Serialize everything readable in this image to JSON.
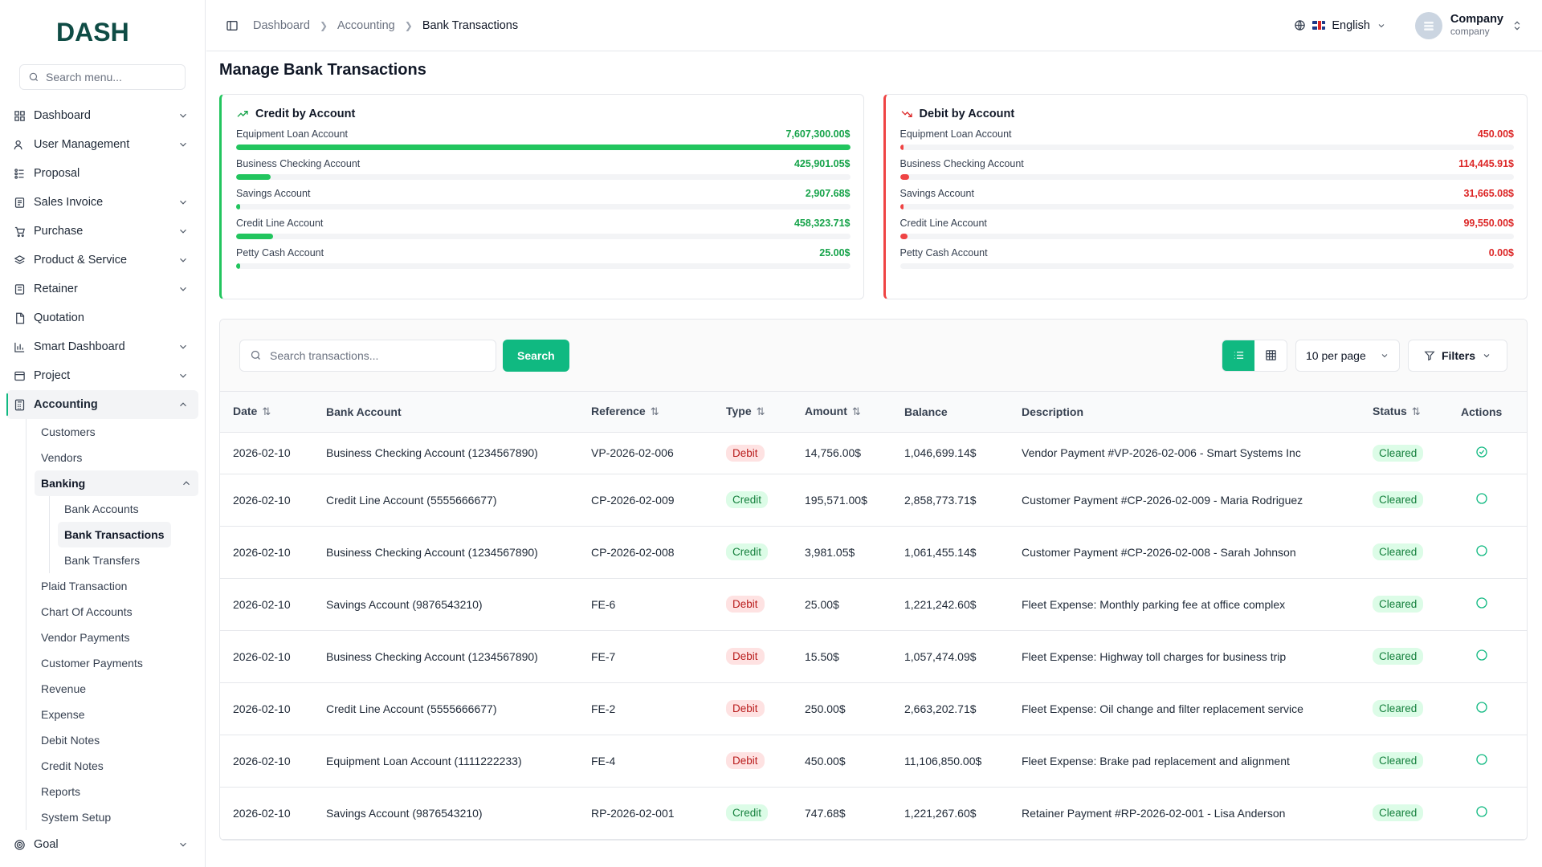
{
  "app": {
    "brand": "DASH"
  },
  "sidebar": {
    "search_placeholder": "Search menu...",
    "items": [
      {
        "label": "Dashboard"
      },
      {
        "label": "User Management"
      },
      {
        "label": "Proposal"
      },
      {
        "label": "Sales Invoice"
      },
      {
        "label": "Purchase"
      },
      {
        "label": "Product & Service"
      },
      {
        "label": "Retainer"
      },
      {
        "label": "Quotation"
      },
      {
        "label": "Smart Dashboard"
      },
      {
        "label": "Project"
      },
      {
        "label": "Accounting"
      },
      {
        "label": "Goal"
      }
    ],
    "accounting_sub": [
      {
        "label": "Customers"
      },
      {
        "label": "Vendors"
      },
      {
        "label": "Banking"
      },
      {
        "label": "Plaid Transaction"
      },
      {
        "label": "Chart Of Accounts"
      },
      {
        "label": "Vendor Payments"
      },
      {
        "label": "Customer Payments"
      },
      {
        "label": "Revenue"
      },
      {
        "label": "Expense"
      },
      {
        "label": "Debit Notes"
      },
      {
        "label": "Credit Notes"
      },
      {
        "label": "Reports"
      },
      {
        "label": "System Setup"
      }
    ],
    "banking_sub": [
      {
        "label": "Bank Accounts"
      },
      {
        "label": "Bank Transactions"
      },
      {
        "label": "Bank Transfers"
      }
    ]
  },
  "header": {
    "breadcrumbs": [
      "Dashboard",
      "Accounting",
      "Bank Transactions"
    ],
    "language": "English",
    "company_name": "Company",
    "company_role": "company"
  },
  "page": {
    "title": "Manage Bank Transactions"
  },
  "credit_card": {
    "title": "Credit by Account",
    "accounts": [
      {
        "name": "Equipment Loan Account",
        "amount": "7,607,300.00$",
        "fraction": 1.0
      },
      {
        "name": "Business Checking Account",
        "amount": "425,901.05$",
        "fraction": 0.056
      },
      {
        "name": "Savings Account",
        "amount": "2,907.68$",
        "fraction": 0.006
      },
      {
        "name": "Credit Line Account",
        "amount": "458,323.71$",
        "fraction": 0.06
      },
      {
        "name": "Petty Cash Account",
        "amount": "25.00$",
        "fraction": 0.004
      }
    ]
  },
  "debit_card": {
    "title": "Debit by Account",
    "accounts": [
      {
        "name": "Equipment Loan Account",
        "amount": "450.00$",
        "fraction": 0.004
      },
      {
        "name": "Business Checking Account",
        "amount": "114,445.91$",
        "fraction": 0.015
      },
      {
        "name": "Savings Account",
        "amount": "31,665.08$",
        "fraction": 0.006
      },
      {
        "name": "Credit Line Account",
        "amount": "99,550.00$",
        "fraction": 0.013
      },
      {
        "name": "Petty Cash Account",
        "amount": "0.00$",
        "fraction": 0.0
      }
    ]
  },
  "toolbar": {
    "search_placeholder": "Search transactions...",
    "search_label": "Search",
    "per_page": "10 per page",
    "filters_label": "Filters"
  },
  "table": {
    "headers": [
      "Date",
      "Bank Account",
      "Reference",
      "Type",
      "Amount",
      "Balance",
      "Description",
      "Status",
      "Actions"
    ],
    "rows": [
      {
        "date": "2026-02-10",
        "account": "Business Checking Account (1234567890)",
        "reference": "VP-2026-02-006",
        "type": "Debit",
        "amount": "14,756.00$",
        "balance": "1,046,699.14$",
        "description": "Vendor Payment #VP-2026-02-006 - Smart Systems Inc",
        "status": "Cleared"
      },
      {
        "date": "2026-02-10",
        "account": "Credit Line Account (5555666677)",
        "reference": "CP-2026-02-009",
        "type": "Credit",
        "amount": "195,571.00$",
        "balance": "2,858,773.71$",
        "description": "Customer Payment #CP-2026-02-009 - Maria Rodriguez",
        "status": "Cleared"
      },
      {
        "date": "2026-02-10",
        "account": "Business Checking Account (1234567890)",
        "reference": "CP-2026-02-008",
        "type": "Credit",
        "amount": "3,981.05$",
        "balance": "1,061,455.14$",
        "description": "Customer Payment #CP-2026-02-008 - Sarah Johnson",
        "status": "Cleared"
      },
      {
        "date": "2026-02-10",
        "account": "Savings Account (9876543210)",
        "reference": "FE-6",
        "type": "Debit",
        "amount": "25.00$",
        "balance": "1,221,242.60$",
        "description": "Fleet Expense: Monthly parking fee at office complex",
        "status": "Cleared"
      },
      {
        "date": "2026-02-10",
        "account": "Business Checking Account (1234567890)",
        "reference": "FE-7",
        "type": "Debit",
        "amount": "15.50$",
        "balance": "1,057,474.09$",
        "description": "Fleet Expense: Highway toll charges for business trip",
        "status": "Cleared"
      },
      {
        "date": "2026-02-10",
        "account": "Credit Line Account (5555666677)",
        "reference": "FE-2",
        "type": "Debit",
        "amount": "250.00$",
        "balance": "2,663,202.71$",
        "description": "Fleet Expense: Oil change and filter replacement service",
        "status": "Cleared"
      },
      {
        "date": "2026-02-10",
        "account": "Equipment Loan Account (1111222233)",
        "reference": "FE-4",
        "type": "Debit",
        "amount": "450.00$",
        "balance": "11,106,850.00$",
        "description": "Fleet Expense: Brake pad replacement and alignment",
        "status": "Cleared"
      },
      {
        "date": "2026-02-10",
        "account": "Savings Account (9876543210)",
        "reference": "RP-2026-02-001",
        "type": "Credit",
        "amount": "747.68$",
        "balance": "1,221,267.60$",
        "description": "Retainer Payment #RP-2026-02-001 - Lisa Anderson",
        "status": "Cleared"
      }
    ]
  },
  "colors": {
    "accent": "#10b981",
    "credit": "#22c55e",
    "debit": "#ef4444"
  }
}
